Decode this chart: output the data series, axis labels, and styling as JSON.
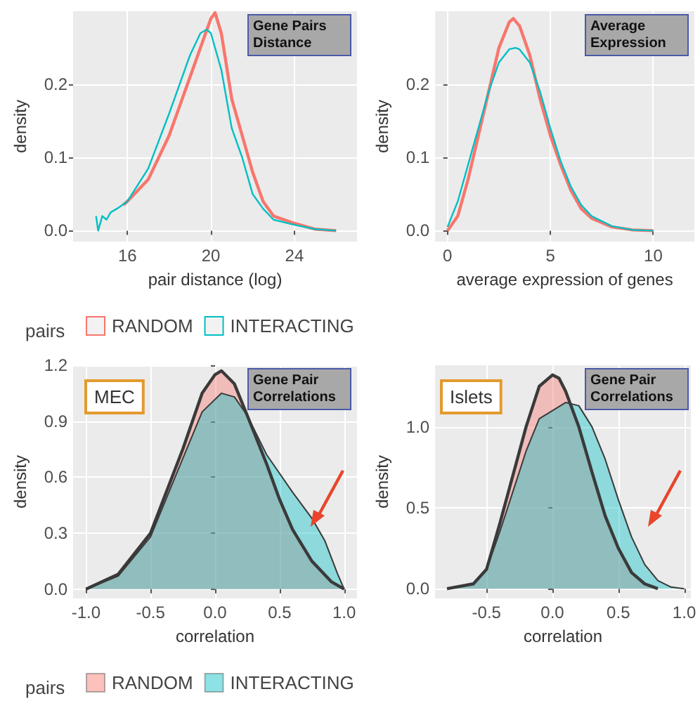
{
  "chart_data": [
    {
      "type": "line",
      "xlabel": "pair distance (log)",
      "ylabel": "density",
      "legend_title": "pairs",
      "legend": "bottom",
      "grid": true,
      "annotations": [
        "Gene Pairs Distance"
      ],
      "xlim": [
        13.4,
        27
      ],
      "xticks": [
        16,
        20,
        24
      ],
      "ylim": [
        -0.015,
        0.3
      ],
      "yticks": [
        {
          "value": 0,
          "label": "0.0"
        },
        0.1,
        0.2
      ],
      "series": [
        {
          "name": "RANDOM",
          "color": "#f8766d",
          "x": [
            15.8,
            16,
            17,
            18,
            19,
            19.5,
            20,
            20.2,
            20.5,
            21,
            21.5,
            22,
            22.5,
            23,
            24,
            25,
            26
          ],
          "values": [
            0.035,
            0.04,
            0.07,
            0.13,
            0.21,
            0.25,
            0.29,
            0.298,
            0.27,
            0.18,
            0.13,
            0.08,
            0.04,
            0.02,
            0.01,
            0.002,
            0
          ]
        },
        {
          "name": "INTERACTING",
          "color": "#00bfc4",
          "x": [
            14.5,
            14.6,
            14.8,
            15,
            15.2,
            15.5,
            16,
            17,
            18,
            19,
            19.5,
            19.8,
            20,
            20.5,
            21,
            21.5,
            22,
            22.5,
            23,
            24,
            25,
            26
          ],
          "values": [
            0.02,
            0.0,
            0.02,
            0.015,
            0.025,
            0.03,
            0.04,
            0.085,
            0.16,
            0.24,
            0.27,
            0.275,
            0.27,
            0.22,
            0.14,
            0.1,
            0.05,
            0.03,
            0.015,
            0.008,
            0.002,
            0
          ]
        }
      ]
    },
    {
      "type": "line",
      "xlabel": "average expression of genes",
      "ylabel": "density",
      "grid": true,
      "annotations": [
        "Average Expression"
      ],
      "xlim": [
        -0.6,
        12
      ],
      "xticks": [
        0,
        5,
        10
      ],
      "ylim": [
        -0.015,
        0.3
      ],
      "yticks": [
        {
          "value": 0,
          "label": "0.0"
        },
        0.1,
        0.2
      ],
      "series": [
        {
          "color": "#f8766d",
          "x": [
            0,
            0.5,
            1,
            1.5,
            2,
            2.5,
            3,
            3.2,
            3.5,
            4,
            4.5,
            5,
            5.5,
            6,
            6.5,
            7,
            8,
            9,
            10
          ],
          "values": [
            0,
            0.02,
            0.07,
            0.13,
            0.19,
            0.25,
            0.285,
            0.29,
            0.28,
            0.24,
            0.18,
            0.13,
            0.09,
            0.055,
            0.03,
            0.017,
            0.005,
            0.001,
            0
          ]
        },
        {
          "color": "#00bfc4",
          "x": [
            0,
            0.5,
            1,
            1.5,
            2,
            2.5,
            3,
            3.3,
            3.5,
            4,
            4.5,
            5,
            5.5,
            6,
            6.5,
            7,
            8,
            9,
            10
          ],
          "values": [
            0.005,
            0.04,
            0.09,
            0.14,
            0.19,
            0.23,
            0.248,
            0.25,
            0.248,
            0.23,
            0.19,
            0.14,
            0.095,
            0.06,
            0.035,
            0.02,
            0.006,
            0.001,
            0
          ]
        }
      ]
    },
    {
      "type": "area",
      "xlabel": "correlation",
      "ylabel": "density",
      "legend_title": "pairs",
      "legend": "bottom",
      "grid": true,
      "annotations": [
        "MEC",
        "Gene Pair Correlations"
      ],
      "xlim": [
        -1.1,
        1.1
      ],
      "xticks": [
        {
          "value": -1,
          "label": "-1.0"
        },
        -0.5,
        {
          "value": 0,
          "label": "0.0"
        },
        0.5,
        {
          "value": 1,
          "label": "1.0"
        }
      ],
      "ylim": [
        -0.05,
        1.2
      ],
      "yticks": [
        {
          "value": 0,
          "label": "0.0"
        },
        0.3,
        0.6,
        0.9,
        {
          "value": 1.2,
          "label": "1.2"
        }
      ],
      "series": [
        {
          "name": "RANDOM",
          "color": "#f8766d",
          "x": [
            -1,
            -0.75,
            -0.5,
            -0.25,
            -0.1,
            0,
            0.05,
            0.15,
            0.25,
            0.4,
            0.5,
            0.6,
            0.75,
            0.9,
            1
          ],
          "values": [
            0,
            0.08,
            0.3,
            0.75,
            1.05,
            1.15,
            1.17,
            1.1,
            0.93,
            0.67,
            0.48,
            0.32,
            0.15,
            0.04,
            0
          ]
        },
        {
          "name": "INTERACTING",
          "color": "#00bfc4",
          "x": [
            -1,
            -0.75,
            -0.5,
            -0.25,
            -0.1,
            0.05,
            0.15,
            0.25,
            0.4,
            0.5,
            0.6,
            0.75,
            0.85,
            0.95,
            1
          ],
          "values": [
            0,
            0.07,
            0.28,
            0.7,
            0.95,
            1.05,
            1.03,
            0.93,
            0.72,
            0.62,
            0.52,
            0.38,
            0.26,
            0.08,
            0
          ]
        }
      ]
    },
    {
      "type": "area",
      "xlabel": "correlation",
      "ylabel": "density",
      "grid": true,
      "annotations": [
        "Islets",
        "Gene Pair Correlations"
      ],
      "xlim": [
        -0.89,
        1.05
      ],
      "xticks": [
        -0.5,
        {
          "value": 0,
          "label": "0.0"
        },
        0.5,
        {
          "value": 1,
          "label": "1.0"
        }
      ],
      "ylim": [
        -0.06,
        1.38
      ],
      "yticks": [
        {
          "value": 0,
          "label": "0.0"
        },
        0.5,
        {
          "value": 1,
          "label": "1.0"
        }
      ],
      "series": [
        {
          "color": "#f8766d",
          "x": [
            -0.8,
            -0.6,
            -0.5,
            -0.4,
            -0.3,
            -0.2,
            -0.1,
            0,
            0.05,
            0.1,
            0.2,
            0.3,
            0.4,
            0.5,
            0.6,
            0.7,
            0.8
          ],
          "values": [
            0,
            0.03,
            0.12,
            0.4,
            0.7,
            1.0,
            1.25,
            1.32,
            1.3,
            1.22,
            1.0,
            0.72,
            0.45,
            0.25,
            0.1,
            0.03,
            0
          ]
        },
        {
          "color": "#00bfc4",
          "x": [
            -0.8,
            -0.6,
            -0.5,
            -0.4,
            -0.3,
            -0.2,
            -0.1,
            0,
            0.1,
            0.2,
            0.3,
            0.4,
            0.5,
            0.6,
            0.7,
            0.8,
            0.9,
            1.0
          ],
          "values": [
            0,
            0.03,
            0.12,
            0.35,
            0.6,
            0.85,
            1.05,
            1.1,
            1.15,
            1.13,
            1.0,
            0.8,
            0.55,
            0.32,
            0.15,
            0.05,
            0.01,
            0
          ]
        }
      ]
    }
  ]
}
